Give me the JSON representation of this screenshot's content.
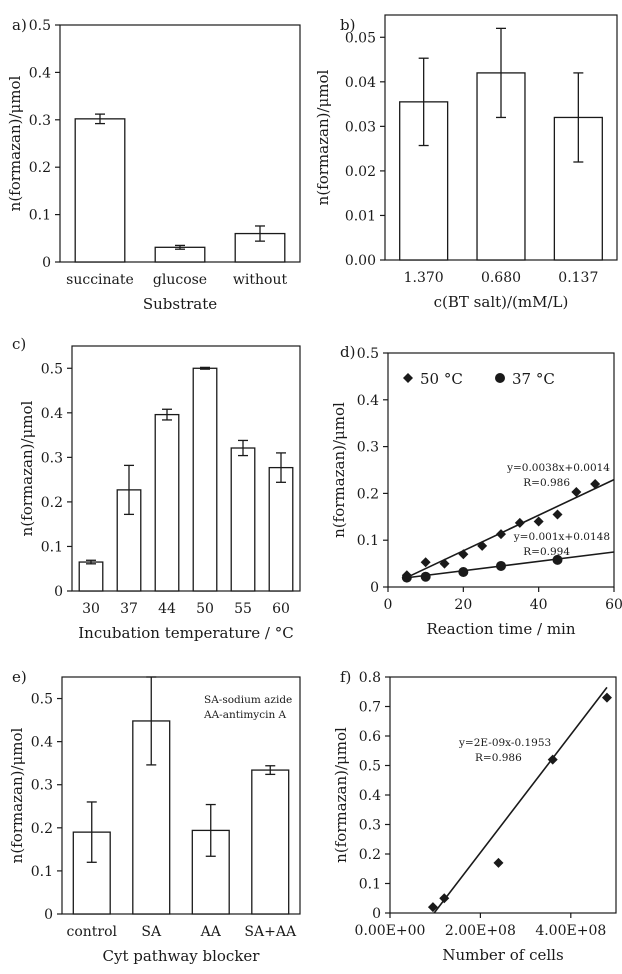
{
  "chart_data": [
    {
      "panel": "a)",
      "type": "bar",
      "categories": [
        "succinate",
        "glucose",
        "without"
      ],
      "values": [
        0.302,
        0.031,
        0.06
      ],
      "errors": [
        0.01,
        0.004,
        0.016
      ],
      "xlabel": "Substrate",
      "ylabel": "n(formazan)/μmol",
      "ylim": [
        0,
        0.5
      ],
      "yticks": [
        0,
        0.1,
        0.2,
        0.3,
        0.4,
        0.5
      ],
      "ytick_labels": [
        "0",
        "0.1",
        "0.2",
        "0.3",
        "0.4",
        "0.5"
      ]
    },
    {
      "panel": "b)",
      "type": "bar",
      "categories": [
        "1.370",
        "0.680",
        "0.137"
      ],
      "values": [
        0.0355,
        0.042,
        0.032
      ],
      "errors": [
        0.0098,
        0.01,
        0.01
      ],
      "xlabel": "c(BT salt)/(mM/L)",
      "ylabel": "n(formazan)/μmol",
      "ylim": [
        0,
        0.055
      ],
      "yticks": [
        0,
        0.01,
        0.02,
        0.03,
        0.04,
        0.05
      ],
      "ytick_labels": [
        "0.00",
        "0.01",
        "0.02",
        "0.03",
        "0.04",
        "0.05"
      ]
    },
    {
      "panel": "c)",
      "type": "bar",
      "categories": [
        "30",
        "37",
        "44",
        "50",
        "55",
        "60"
      ],
      "values": [
        0.065,
        0.227,
        0.396,
        0.5,
        0.321,
        0.277
      ],
      "errors": [
        0.004,
        0.055,
        0.012,
        0.002,
        0.017,
        0.033
      ],
      "xlabel": "Incubation temperature / °C",
      "ylabel": "n(formazan)/μmol",
      "ylim": [
        0,
        0.55
      ],
      "yticks": [
        0,
        0.1,
        0.2,
        0.3,
        0.4,
        0.5
      ],
      "ytick_labels": [
        "0",
        "0.1",
        "0.2",
        "0.3",
        "0.4",
        "0.5"
      ]
    },
    {
      "panel": "d)",
      "type": "scatter",
      "series": [
        {
          "name": "50 °C",
          "marker": "diamond",
          "x": [
            5,
            10,
            15,
            20,
            25,
            30,
            35,
            40,
            45,
            50,
            55
          ],
          "y": [
            0.025,
            0.053,
            0.05,
            0.07,
            0.088,
            0.113,
            0.137,
            0.14,
            0.155,
            0.203,
            0.22
          ],
          "fit_slope": 0.0038,
          "fit_intercept": 0.0014,
          "fit_range": [
            5,
            60
          ],
          "fit_equation": "y=0.0038x+0.0014",
          "fit_r": "R=0.986"
        },
        {
          "name": "37 °C",
          "marker": "circle",
          "x": [
            5,
            10,
            20,
            30,
            45
          ],
          "y": [
            0.02,
            0.022,
            0.032,
            0.045,
            0.058
          ],
          "fit_slope": 0.001,
          "fit_intercept": 0.0148,
          "fit_range": [
            5,
            60
          ],
          "fit_equation": "y=0.001x+0.0148",
          "fit_r": "R=0.994"
        }
      ],
      "xlabel": "Reaction time / min",
      "ylabel": "n(formazan)/μmol",
      "xlim": [
        0,
        60
      ],
      "ylim": [
        0,
        0.5
      ],
      "xticks": [
        0,
        20,
        40,
        60
      ],
      "xtick_labels": [
        "0",
        "20",
        "40",
        "60"
      ],
      "yticks": [
        0,
        0.1,
        0.2,
        0.3,
        0.4,
        0.5
      ],
      "ytick_labels": [
        "0",
        "0.1",
        "0.2",
        "0.3",
        "0.4",
        "0.5"
      ],
      "legend_placement": "top"
    },
    {
      "panel": "e)",
      "type": "bar",
      "categories": [
        "control",
        "SA",
        "AA",
        "SA+AA"
      ],
      "values": [
        0.19,
        0.448,
        0.194,
        0.334
      ],
      "errors": [
        0.07,
        0.102,
        0.06,
        0.01
      ],
      "xlabel": "Cyt pathway blocker",
      "ylabel": "n(formazan)/μmol",
      "ylim": [
        0,
        0.55
      ],
      "yticks": [
        0,
        0.1,
        0.2,
        0.3,
        0.4,
        0.5
      ],
      "ytick_labels": [
        "0",
        "0.1",
        "0.2",
        "0.3",
        "0.4",
        "0.5"
      ],
      "annotations": [
        "SA-sodium azide",
        "AA-antimycin A"
      ]
    },
    {
      "panel": "f)",
      "type": "scatter",
      "series": [
        {
          "marker": "diamond",
          "x": [
            95000000,
            120000000,
            240000000,
            360000000,
            480000000
          ],
          "y": [
            0.02,
            0.05,
            0.17,
            0.52,
            0.73
          ],
          "fit_slope": 2e-09,
          "fit_intercept": -0.1953,
          "fit_range": [
            97650000,
            480000000
          ],
          "fit_equation": "y=2E-09x-0.1953",
          "fit_r": "R=0.986"
        }
      ],
      "xlabel": "Number of cells",
      "ylabel": "n(formazan)/μmol",
      "xlim": [
        0,
        500000000
      ],
      "ylim": [
        0,
        0.8
      ],
      "xticks": [
        0,
        200000000,
        400000000
      ],
      "xtick_labels": [
        "0.00E+00",
        "2.00E+08",
        "4.00E+08"
      ],
      "yticks": [
        0,
        0.1,
        0.2,
        0.3,
        0.4,
        0.5,
        0.6,
        0.7,
        0.8
      ],
      "ytick_labels": [
        "0",
        "0.1",
        "0.2",
        "0.3",
        "0.4",
        "0.5",
        "0.6",
        "0.7",
        "0.8"
      ]
    }
  ]
}
